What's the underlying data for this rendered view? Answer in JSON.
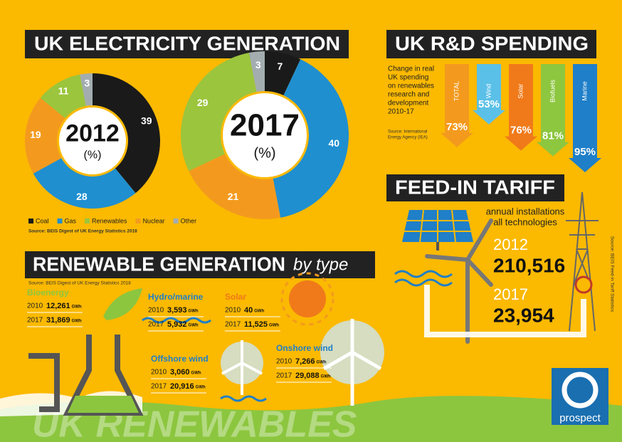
{
  "electricity": {
    "title": "UK ELECTRICITY GENERATION",
    "categories": [
      "Coal",
      "Gas",
      "Renewables",
      "Nuclear",
      "Other"
    ],
    "colors": [
      "#1a1a1a",
      "#1f8fd0",
      "#9bc53d",
      "#f39a1e",
      "#a3adb0"
    ],
    "charts": [
      {
        "type": "donut",
        "year": "2012",
        "unit": "(%)",
        "values": [
          39,
          28,
          11,
          19,
          3
        ]
      },
      {
        "type": "donut",
        "year": "2017",
        "unit": "(%)",
        "values": [
          7,
          40,
          29,
          21,
          3
        ]
      }
    ],
    "source": "Source: BEIS Digest of UK Energy Statistics 2018"
  },
  "rd_spending": {
    "title": "UK R&D SPENDING",
    "description": [
      "Change in real",
      "UK spending",
      "on renewables",
      "research and",
      "development",
      "2010-17"
    ],
    "source": [
      "Source: International",
      "Energy Agency (IEA)"
    ],
    "type": "arrow",
    "items": [
      {
        "name": "TOTAL",
        "value": 73,
        "value_label": "73%",
        "color": "#f39a1e"
      },
      {
        "name": "Wind",
        "value": 53,
        "value_label": "53%",
        "color": "#5bc0e8"
      },
      {
        "name": "Solar",
        "value": 76,
        "value_label": "76%",
        "color": "#f07a1a"
      },
      {
        "name": "Biofuels",
        "value": 81,
        "value_label": "81%",
        "color": "#8dc63f"
      },
      {
        "name": "Marine",
        "value": 95,
        "value_label": "95%",
        "color": "#1f7fc8"
      }
    ]
  },
  "feed_in_tariff": {
    "title": "FEED-IN TARIFF",
    "subtitle": [
      "annual installations",
      "all technologies"
    ],
    "rows": [
      {
        "year": "2012",
        "value": "210,516"
      },
      {
        "year": "2017",
        "value": "23,954"
      }
    ],
    "source": "Source: BEIS Feed-in Tariff Statistics"
  },
  "renewable_generation": {
    "title": "RENEWABLE GENERATION",
    "title_suffix": "by type",
    "source": "Source: BEIS Digest of UK Energy Statistics 2018",
    "unit": "GWh",
    "types": [
      {
        "name": "Bioenergy",
        "rows": [
          [
            "2010",
            "12,261"
          ],
          [
            "2017",
            "31,869"
          ]
        ]
      },
      {
        "name": "Hydro/marine",
        "rows": [
          [
            "2010",
            "3,593"
          ],
          [
            "2017",
            "5,932"
          ]
        ]
      },
      {
        "name": "Solar",
        "rows": [
          [
            "2010",
            "40"
          ],
          [
            "2017",
            "11,525"
          ]
        ]
      },
      {
        "name": "Offshore wind",
        "rows": [
          [
            "2010",
            "3,060"
          ],
          [
            "2017",
            "20,916"
          ]
        ]
      },
      {
        "name": "Onshore wind",
        "rows": [
          [
            "2010",
            "7,266"
          ],
          [
            "2017",
            "29,088"
          ]
        ]
      }
    ]
  },
  "footer": {
    "banner": "UK RENEWABLES",
    "brand": "prospect"
  }
}
